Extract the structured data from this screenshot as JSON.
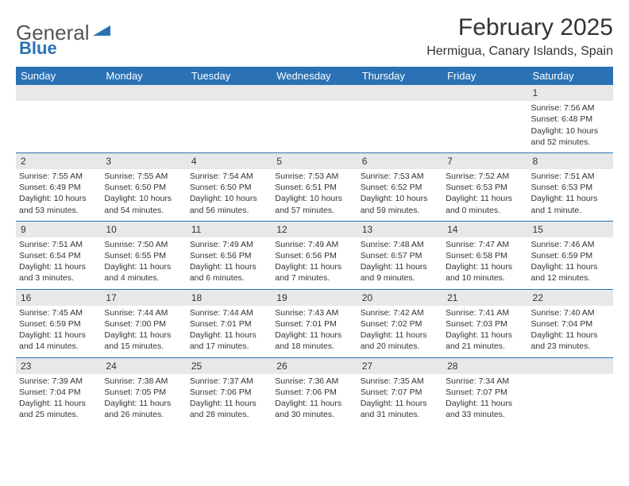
{
  "logo": {
    "text_general": "General",
    "text_blue": "Blue",
    "mark_color": "#2a72b5"
  },
  "header": {
    "month_title": "February 2025",
    "location": "Hermigua, Canary Islands, Spain"
  },
  "colors": {
    "header_bg": "#2a72b5",
    "header_fg": "#ffffff",
    "daynum_bg": "#e8e8e8",
    "separator": "#2a72b5",
    "body_text": "#333333",
    "page_bg": "#ffffff"
  },
  "day_headers": [
    "Sunday",
    "Monday",
    "Tuesday",
    "Wednesday",
    "Thursday",
    "Friday",
    "Saturday"
  ],
  "weeks": [
    {
      "nums": [
        "",
        "",
        "",
        "",
        "",
        "",
        "1"
      ],
      "cells": [
        [],
        [],
        [],
        [],
        [],
        [],
        [
          "Sunrise: 7:56 AM",
          "Sunset: 6:48 PM",
          "Daylight: 10 hours and 52 minutes."
        ]
      ]
    },
    {
      "nums": [
        "2",
        "3",
        "4",
        "5",
        "6",
        "7",
        "8"
      ],
      "cells": [
        [
          "Sunrise: 7:55 AM",
          "Sunset: 6:49 PM",
          "Daylight: 10 hours and 53 minutes."
        ],
        [
          "Sunrise: 7:55 AM",
          "Sunset: 6:50 PM",
          "Daylight: 10 hours and 54 minutes."
        ],
        [
          "Sunrise: 7:54 AM",
          "Sunset: 6:50 PM",
          "Daylight: 10 hours and 56 minutes."
        ],
        [
          "Sunrise: 7:53 AM",
          "Sunset: 6:51 PM",
          "Daylight: 10 hours and 57 minutes."
        ],
        [
          "Sunrise: 7:53 AM",
          "Sunset: 6:52 PM",
          "Daylight: 10 hours and 59 minutes."
        ],
        [
          "Sunrise: 7:52 AM",
          "Sunset: 6:53 PM",
          "Daylight: 11 hours and 0 minutes."
        ],
        [
          "Sunrise: 7:51 AM",
          "Sunset: 6:53 PM",
          "Daylight: 11 hours and 1 minute."
        ]
      ]
    },
    {
      "nums": [
        "9",
        "10",
        "11",
        "12",
        "13",
        "14",
        "15"
      ],
      "cells": [
        [
          "Sunrise: 7:51 AM",
          "Sunset: 6:54 PM",
          "Daylight: 11 hours and 3 minutes."
        ],
        [
          "Sunrise: 7:50 AM",
          "Sunset: 6:55 PM",
          "Daylight: 11 hours and 4 minutes."
        ],
        [
          "Sunrise: 7:49 AM",
          "Sunset: 6:56 PM",
          "Daylight: 11 hours and 6 minutes."
        ],
        [
          "Sunrise: 7:49 AM",
          "Sunset: 6:56 PM",
          "Daylight: 11 hours and 7 minutes."
        ],
        [
          "Sunrise: 7:48 AM",
          "Sunset: 6:57 PM",
          "Daylight: 11 hours and 9 minutes."
        ],
        [
          "Sunrise: 7:47 AM",
          "Sunset: 6:58 PM",
          "Daylight: 11 hours and 10 minutes."
        ],
        [
          "Sunrise: 7:46 AM",
          "Sunset: 6:59 PM",
          "Daylight: 11 hours and 12 minutes."
        ]
      ]
    },
    {
      "nums": [
        "16",
        "17",
        "18",
        "19",
        "20",
        "21",
        "22"
      ],
      "cells": [
        [
          "Sunrise: 7:45 AM",
          "Sunset: 6:59 PM",
          "Daylight: 11 hours and 14 minutes."
        ],
        [
          "Sunrise: 7:44 AM",
          "Sunset: 7:00 PM",
          "Daylight: 11 hours and 15 minutes."
        ],
        [
          "Sunrise: 7:44 AM",
          "Sunset: 7:01 PM",
          "Daylight: 11 hours and 17 minutes."
        ],
        [
          "Sunrise: 7:43 AM",
          "Sunset: 7:01 PM",
          "Daylight: 11 hours and 18 minutes."
        ],
        [
          "Sunrise: 7:42 AM",
          "Sunset: 7:02 PM",
          "Daylight: 11 hours and 20 minutes."
        ],
        [
          "Sunrise: 7:41 AM",
          "Sunset: 7:03 PM",
          "Daylight: 11 hours and 21 minutes."
        ],
        [
          "Sunrise: 7:40 AM",
          "Sunset: 7:04 PM",
          "Daylight: 11 hours and 23 minutes."
        ]
      ]
    },
    {
      "nums": [
        "23",
        "24",
        "25",
        "26",
        "27",
        "28",
        ""
      ],
      "cells": [
        [
          "Sunrise: 7:39 AM",
          "Sunset: 7:04 PM",
          "Daylight: 11 hours and 25 minutes."
        ],
        [
          "Sunrise: 7:38 AM",
          "Sunset: 7:05 PM",
          "Daylight: 11 hours and 26 minutes."
        ],
        [
          "Sunrise: 7:37 AM",
          "Sunset: 7:06 PM",
          "Daylight: 11 hours and 28 minutes."
        ],
        [
          "Sunrise: 7:36 AM",
          "Sunset: 7:06 PM",
          "Daylight: 11 hours and 30 minutes."
        ],
        [
          "Sunrise: 7:35 AM",
          "Sunset: 7:07 PM",
          "Daylight: 11 hours and 31 minutes."
        ],
        [
          "Sunrise: 7:34 AM",
          "Sunset: 7:07 PM",
          "Daylight: 11 hours and 33 minutes."
        ],
        []
      ]
    }
  ]
}
